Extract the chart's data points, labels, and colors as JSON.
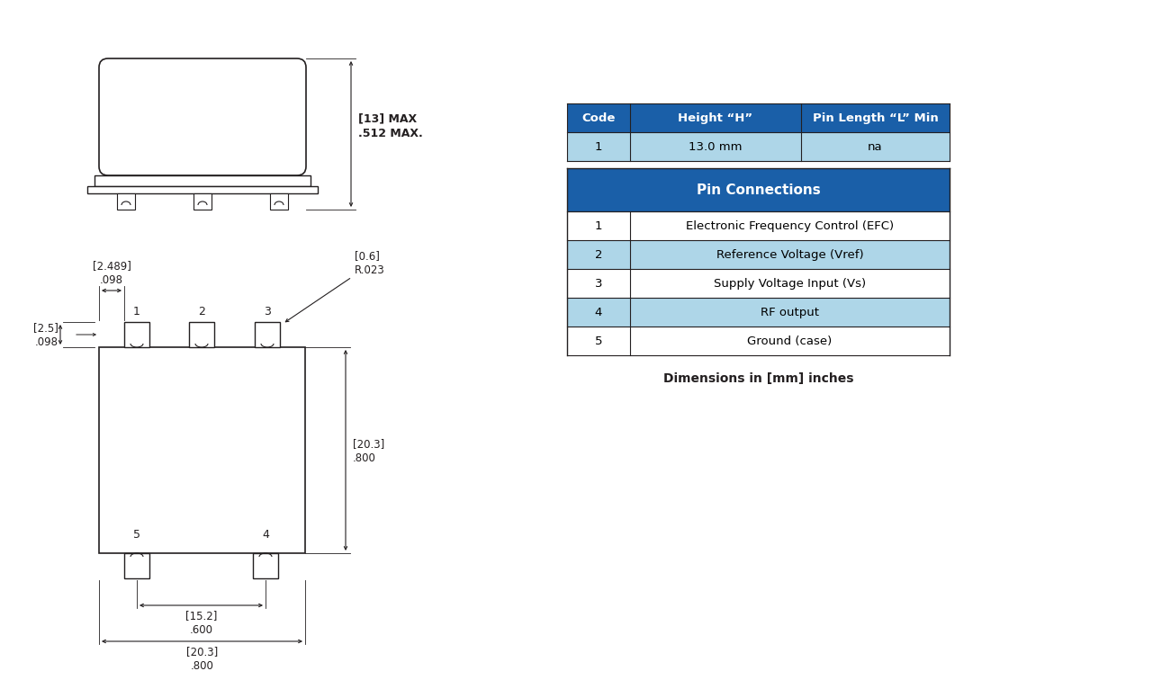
{
  "bg_color": "#ffffff",
  "line_color": "#231f20",
  "dim_color": "#231f20",
  "table_header_bg": "#1a5fa8",
  "table_header_fg": "#ffffff",
  "table_light_bg": "#aed6e8",
  "table_white_bg": "#ffffff",
  "table_border": "#231f20",
  "title_note": "Dimensions in [mm] inches",
  "table1_headers": [
    "Code",
    "Height “H”",
    "Pin Length “L” Min"
  ],
  "table1_rows": [
    [
      "1",
      "13.0 mm",
      "na"
    ]
  ],
  "table2_title": "Pin Connections",
  "table2_rows": [
    [
      "1",
      "Electronic Frequency Control (EFC)"
    ],
    [
      "2",
      "Reference Voltage (Vref)"
    ],
    [
      "3",
      "Supply Voltage Input (Vs)"
    ],
    [
      "4",
      "RF output"
    ],
    [
      "5",
      "Ground (case)"
    ]
  ],
  "dim_13_max": "[13] MAX\n.512 MAX.",
  "dim_2489": "[2.489]\n.098",
  "dim_06": "[0.6]\nR.023",
  "dim_25": "[2.5]\n.098",
  "dim_203_right": "[20.3]\n.800",
  "dim_152": "[15.2]\n.600",
  "dim_203_bottom": "[20.3]\n.800"
}
